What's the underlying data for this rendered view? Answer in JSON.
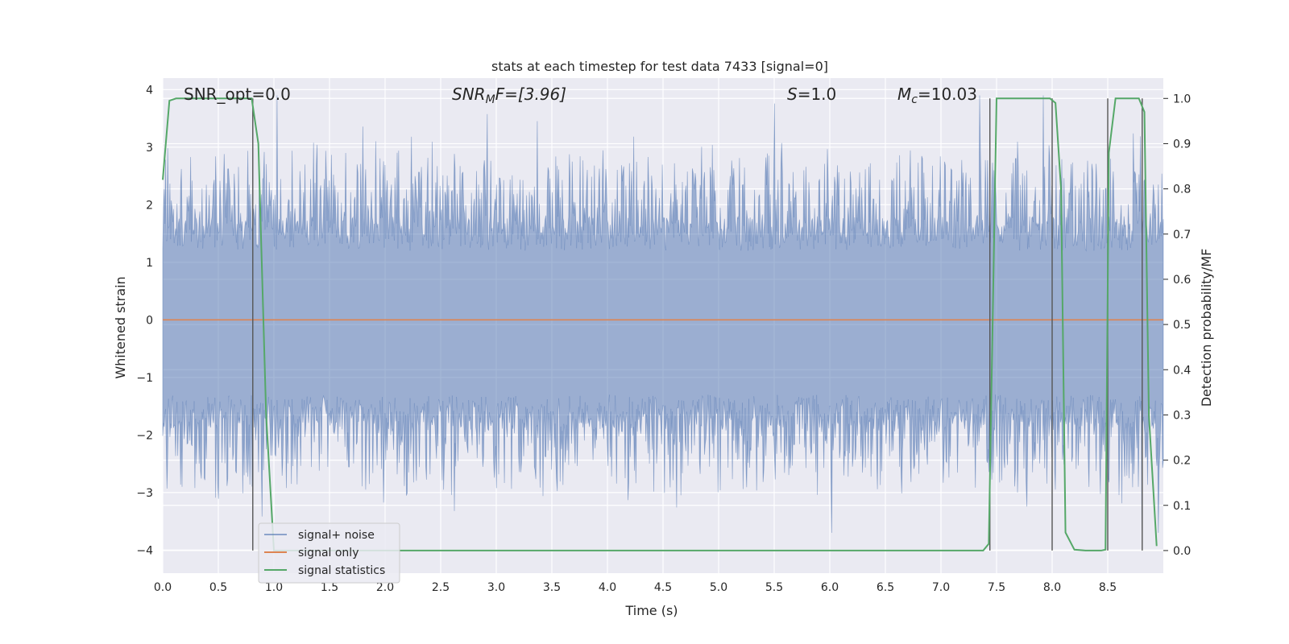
{
  "chart_data": {
    "type": "line",
    "title": "stats at each timestep for test data 7433 [signal=0]",
    "xlabel": "Time (s)",
    "ylabel": "Whitened strain",
    "ylabel_right": "Detection probability/MF",
    "xlim": [
      0.0,
      9.0
    ],
    "ylim": [
      -4.4,
      4.2
    ],
    "ylim_right": [
      -0.05,
      1.045
    ],
    "x_ticks": [
      0.0,
      0.5,
      1.0,
      1.5,
      2.0,
      2.5,
      3.0,
      3.5,
      4.0,
      4.5,
      5.0,
      5.5,
      6.0,
      6.5,
      7.0,
      7.5,
      8.0,
      8.5
    ],
    "x_tick_labels": [
      "0.0",
      "0.5",
      "1.0",
      "1.5",
      "2.0",
      "2.5",
      "3.0",
      "3.5",
      "4.0",
      "4.5",
      "5.0",
      "5.5",
      "6.0",
      "6.5",
      "7.0",
      "7.5",
      "8.0",
      "8.5"
    ],
    "y_ticks": [
      -4,
      -3,
      -2,
      -1,
      0,
      1,
      2,
      3,
      4
    ],
    "y_tick_labels": [
      "−4",
      "−3",
      "−2",
      "−1",
      "0",
      "1",
      "2",
      "3",
      "4"
    ],
    "y_right_ticks": [
      0.0,
      0.1,
      0.2,
      0.3,
      0.4,
      0.5,
      0.6,
      0.7,
      0.8,
      0.9,
      1.0
    ],
    "y_right_tick_labels": [
      "0.0",
      "0.1",
      "0.2",
      "0.3",
      "0.4",
      "0.5",
      "0.6",
      "0.7",
      "0.8",
      "0.9",
      "1.0"
    ],
    "grid": true,
    "legend_position": "bottom-left",
    "annotations": {
      "snr_opt": "SNR_opt=0.0",
      "snr_mf_prefix": "SNR",
      "snr_mf_sub": "M",
      "snr_mf_suffix": "F=[3.96]",
      "s_var": "S",
      "s_value": "=1.0",
      "mc_var": "M",
      "mc_sub": "c",
      "mc_value": "=10.03"
    },
    "series": [
      {
        "name": "signal+ noise",
        "color": "#4c72b0",
        "axis": "left",
        "envelope_low": -1.6,
        "envelope_high": 1.5,
        "peak_max": 3.9,
        "peak_min": -3.7
      },
      {
        "name": "signal only",
        "color": "#dd8452",
        "axis": "left",
        "x": [
          0.0,
          9.0
        ],
        "y": [
          0.0,
          0.0
        ]
      },
      {
        "name": "signal statistics",
        "color": "#55a868",
        "axis": "right",
        "x": [
          0.0,
          0.06,
          0.12,
          0.2,
          0.3,
          0.4,
          0.5,
          0.6,
          0.7,
          0.8,
          0.86,
          0.93,
          1.0,
          1.1,
          2.0,
          3.0,
          4.0,
          5.0,
          6.0,
          7.0,
          7.38,
          7.43,
          7.5,
          7.6,
          7.7,
          7.8,
          7.9,
          7.98,
          8.03,
          8.08,
          8.12,
          8.2,
          8.3,
          8.4,
          8.44,
          8.48,
          8.51,
          8.57,
          8.63,
          8.7,
          8.78,
          8.83,
          8.87,
          8.94
        ],
        "y": [
          0.82,
          0.995,
          1.0,
          1.0,
          1.0,
          1.0,
          1.0,
          1.0,
          1.0,
          1.0,
          0.9,
          0.3,
          0.0,
          0.0,
          0.0,
          0.0,
          0.0,
          0.0,
          0.0,
          0.0,
          0.0,
          0.015,
          1.0,
          1.0,
          1.0,
          1.0,
          1.0,
          1.0,
          0.99,
          0.8,
          0.04,
          0.002,
          0.0,
          0.0,
          0.0,
          0.002,
          0.88,
          1.0,
          1.0,
          1.0,
          1.0,
          0.97,
          0.3,
          0.01
        ]
      }
    ],
    "vertical_markers": [
      0.81,
      7.44,
      8.0,
      8.5,
      8.81
    ]
  }
}
